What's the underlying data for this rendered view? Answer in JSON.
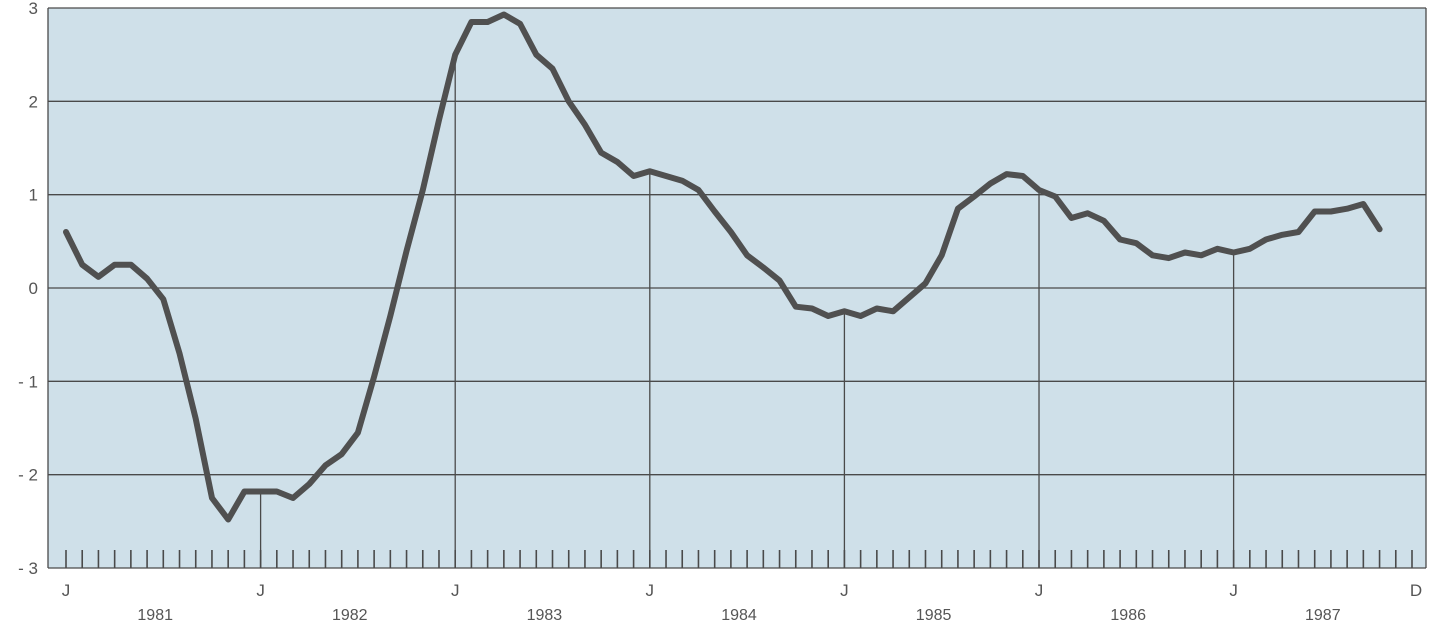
{
  "chart_data": {
    "type": "line",
    "title": "",
    "xlabel": "",
    "ylabel": "",
    "ylim": [
      -3,
      3
    ],
    "y_ticks": [
      {
        "value": 3,
        "label": "3"
      },
      {
        "value": 2,
        "label": "2"
      },
      {
        "value": 1,
        "label": "1"
      },
      {
        "value": 0,
        "label": "0"
      },
      {
        "value": -1,
        "label": "- 1"
      },
      {
        "value": -2,
        "label": "- 2"
      },
      {
        "value": -3,
        "label": "- 3"
      }
    ],
    "x_start": "1981-01",
    "x_end": "1987-12",
    "month_markers": [
      {
        "month": "1981-01",
        "label": "J"
      },
      {
        "month": "1982-01",
        "label": "J"
      },
      {
        "month": "1983-01",
        "label": "J"
      },
      {
        "month": "1984-01",
        "label": "J"
      },
      {
        "month": "1985-01",
        "label": "J"
      },
      {
        "month": "1986-01",
        "label": "J"
      },
      {
        "month": "1987-01",
        "label": "J"
      },
      {
        "month": "1987-12",
        "label": "D"
      }
    ],
    "year_labels": [
      {
        "year": "1981"
      },
      {
        "year": "1982"
      },
      {
        "year": "1983"
      },
      {
        "year": "1984"
      },
      {
        "year": "1985"
      },
      {
        "year": "1986"
      },
      {
        "year": "1987"
      }
    ],
    "grid": true,
    "colors": {
      "plot_background": "#cfe0e9",
      "gridline": "#4a4a4a",
      "line": "#505050"
    },
    "series": [
      {
        "x": [
          "1981-01",
          "1981-02",
          "1981-03",
          "1981-04",
          "1981-05",
          "1981-06",
          "1981-07",
          "1981-08",
          "1981-09",
          "1981-10",
          "1981-11",
          "1981-12",
          "1982-01",
          "1982-02",
          "1982-03",
          "1982-04",
          "1982-05",
          "1982-06",
          "1982-07",
          "1982-08",
          "1982-09",
          "1982-10",
          "1982-11",
          "1982-12",
          "1983-01",
          "1983-02",
          "1983-03",
          "1983-04",
          "1983-05",
          "1983-06",
          "1983-07",
          "1983-08",
          "1983-09",
          "1983-10",
          "1983-11",
          "1983-12",
          "1984-01",
          "1984-02",
          "1984-03",
          "1984-04",
          "1984-05",
          "1984-06",
          "1984-07",
          "1984-08",
          "1984-09",
          "1984-10",
          "1984-11",
          "1984-12",
          "1985-01",
          "1985-02",
          "1985-03",
          "1985-04",
          "1985-05",
          "1985-06",
          "1985-07",
          "1985-08",
          "1985-09",
          "1985-10",
          "1985-11",
          "1985-12",
          "1986-01",
          "1986-02",
          "1986-03",
          "1986-04",
          "1986-05",
          "1986-06",
          "1986-07",
          "1986-08",
          "1986-09",
          "1986-10",
          "1986-11",
          "1986-12",
          "1987-01",
          "1987-02",
          "1987-03",
          "1987-04",
          "1987-05",
          "1987-06",
          "1987-07",
          "1987-08",
          "1987-09",
          "1987-10"
        ],
        "values": [
          0.6,
          0.25,
          0.12,
          0.25,
          0.25,
          0.1,
          -0.12,
          -0.7,
          -1.4,
          -2.25,
          -2.48,
          -2.18,
          -2.18,
          -2.18,
          -2.25,
          -2.1,
          -1.9,
          -1.78,
          -1.55,
          -0.95,
          -0.3,
          0.4,
          1.05,
          1.8,
          2.5,
          2.85,
          2.85,
          2.93,
          2.83,
          2.5,
          2.35,
          2.0,
          1.75,
          1.45,
          1.35,
          1.2,
          1.25,
          1.2,
          1.15,
          1.05,
          0.82,
          0.6,
          0.35,
          0.22,
          0.08,
          -0.2,
          -0.22,
          -0.3,
          -0.25,
          -0.3,
          -0.22,
          -0.25,
          -0.1,
          0.05,
          0.35,
          0.85,
          0.98,
          1.12,
          1.22,
          1.2,
          1.05,
          0.98,
          0.75,
          0.8,
          0.72,
          0.52,
          0.48,
          0.35,
          0.32,
          0.38,
          0.35,
          0.42,
          0.38,
          0.42,
          0.52,
          0.57,
          0.6,
          0.82,
          0.82,
          0.85,
          0.9,
          0.63
        ]
      }
    ]
  }
}
